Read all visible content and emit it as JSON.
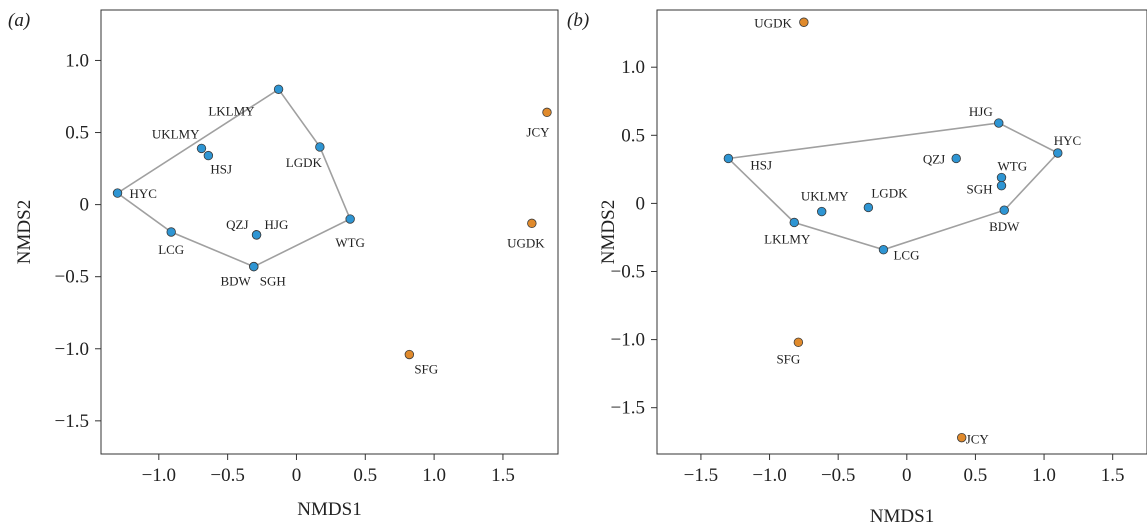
{
  "colors": {
    "blue": "#2e95d3",
    "orange": "#e08a2c",
    "hull": "#a0a0a0"
  },
  "chart_data": [
    {
      "type": "scatter",
      "panel_label": "(a)",
      "xlabel": "NMDS1",
      "ylabel": "NMDS2",
      "xlim": [
        -1.42,
        1.9
      ],
      "ylim": [
        -1.73,
        1.35
      ],
      "xticks": [
        {
          "v": -1.0,
          "label": "−1.0"
        },
        {
          "v": -0.5,
          "label": "−0.5"
        },
        {
          "v": 0,
          "label": "0"
        },
        {
          "v": 0.5,
          "label": "0.5"
        },
        {
          "v": 1.0,
          "label": "1.0"
        },
        {
          "v": 1.5,
          "label": "1.5"
        }
      ],
      "yticks": [
        {
          "v": 1.0,
          "label": "1.0"
        },
        {
          "v": 0.5,
          "label": "0.5"
        },
        {
          "v": 0,
          "label": "0"
        },
        {
          "v": -0.5,
          "label": "−0.5"
        },
        {
          "v": -1.0,
          "label": "−1.0"
        },
        {
          "v": -1.5,
          "label": "−1.5"
        }
      ],
      "hull": [
        "LKLMY",
        "LGDK",
        "WTG",
        "SGH",
        "LCG",
        "HYC"
      ],
      "points": [
        {
          "name": "HYC",
          "x": -1.3,
          "y": 0.08,
          "group": "blue",
          "lx": 12,
          "ly": 5,
          "anchor": "start"
        },
        {
          "name": "UKLMY",
          "x": -0.69,
          "y": 0.39,
          "group": "blue",
          "lx": -2,
          "ly": -10,
          "anchor": "end"
        },
        {
          "name": "HSJ",
          "x": -0.64,
          "y": 0.34,
          "group": "blue",
          "lx": 2,
          "ly": 18,
          "anchor": "start"
        },
        {
          "name": "LKLMY",
          "x": -0.13,
          "y": 0.8,
          "group": "blue",
          "lx": -24,
          "ly": 26,
          "anchor": "end"
        },
        {
          "name": "LGDK",
          "x": 0.17,
          "y": 0.4,
          "group": "blue",
          "lx": 2,
          "ly": 20,
          "anchor": "end"
        },
        {
          "name": "WTG",
          "x": 0.39,
          "y": -0.1,
          "group": "blue",
          "lx": 0,
          "ly": 28,
          "anchor": "middle"
        },
        {
          "name": "QZJ",
          "x": -0.29,
          "y": -0.21,
          "group": "blue",
          "lx": -8,
          "ly": -6,
          "anchor": "end"
        },
        {
          "name": "HJG",
          "x": -0.29,
          "y": -0.21,
          "group": "blue",
          "lx": 8,
          "ly": -6,
          "anchor": "start"
        },
        {
          "name": "LCG",
          "x": -0.91,
          "y": -0.19,
          "group": "blue",
          "lx": 0,
          "ly": 22,
          "anchor": "middle"
        },
        {
          "name": "BDW",
          "x": -0.31,
          "y": -0.43,
          "group": "blue",
          "lx": -3,
          "ly": 19,
          "anchor": "end"
        },
        {
          "name": "SGH",
          "x": -0.31,
          "y": -0.43,
          "group": "blue",
          "lx": 6,
          "ly": 19,
          "anchor": "start"
        },
        {
          "name": "JCY",
          "x": 1.82,
          "y": 0.64,
          "group": "orange",
          "lx": -9,
          "ly": 24,
          "anchor": "middle"
        },
        {
          "name": "UGDK",
          "x": 1.71,
          "y": -0.13,
          "group": "orange",
          "lx": -6,
          "ly": 24,
          "anchor": "middle"
        },
        {
          "name": "SFG",
          "x": 0.82,
          "y": -1.04,
          "group": "orange",
          "lx": 5,
          "ly": 19,
          "anchor": "start"
        }
      ]
    },
    {
      "type": "scatter",
      "panel_label": "(b)",
      "xlabel": "NMDS1",
      "ylabel": "NMDS2",
      "xlim": [
        -1.82,
        1.75
      ],
      "ylim": [
        -1.84,
        1.42
      ],
      "xticks": [
        {
          "v": -1.5,
          "label": "−1.5"
        },
        {
          "v": -1.0,
          "label": "−1.0"
        },
        {
          "v": -0.5,
          "label": "−0.5"
        },
        {
          "v": 0,
          "label": "0"
        },
        {
          "v": 0.5,
          "label": "0.5"
        },
        {
          "v": 1.0,
          "label": "1.0"
        },
        {
          "v": 1.5,
          "label": "1.5"
        }
      ],
      "yticks": [
        {
          "v": 1.0,
          "label": "1.0"
        },
        {
          "v": 0.5,
          "label": "0.5"
        },
        {
          "v": 0,
          "label": "0"
        },
        {
          "v": -0.5,
          "label": "−0.5"
        },
        {
          "v": -1.0,
          "label": "−1.0"
        },
        {
          "v": -1.5,
          "label": "−1.5"
        }
      ],
      "hull": [
        "HSJ",
        "HJG",
        "HYC",
        "BDW",
        "LCG",
        "LKLMY"
      ],
      "points": [
        {
          "name": "UGDK",
          "x": -0.75,
          "y": 1.33,
          "group": "orange",
          "lx": -12,
          "ly": 5,
          "anchor": "end"
        },
        {
          "name": "HJG",
          "x": 0.67,
          "y": 0.59,
          "group": "blue",
          "lx": -6,
          "ly": -7,
          "anchor": "end"
        },
        {
          "name": "HYC",
          "x": 1.1,
          "y": 0.37,
          "group": "blue",
          "lx": -4,
          "ly": -8,
          "anchor": "start"
        },
        {
          "name": "HSJ",
          "x": -1.3,
          "y": 0.33,
          "group": "blue",
          "lx": 22,
          "ly": 11,
          "anchor": "start"
        },
        {
          "name": "QZJ",
          "x": 0.36,
          "y": 0.33,
          "group": "blue",
          "lx": -11,
          "ly": 5,
          "anchor": "end"
        },
        {
          "name": "WTG",
          "x": 0.69,
          "y": 0.19,
          "group": "blue",
          "lx": -4,
          "ly": -7,
          "anchor": "start"
        },
        {
          "name": "SGH",
          "x": 0.69,
          "y": 0.13,
          "group": "blue",
          "lx": -9,
          "ly": 8,
          "anchor": "end"
        },
        {
          "name": "UKLMY",
          "x": -0.62,
          "y": -0.06,
          "group": "blue",
          "lx": 3,
          "ly": -11,
          "anchor": "middle"
        },
        {
          "name": "LGDK",
          "x": -0.28,
          "y": -0.03,
          "group": "blue",
          "lx": 3,
          "ly": -10,
          "anchor": "start"
        },
        {
          "name": "BDW",
          "x": 0.71,
          "y": -0.05,
          "group": "blue",
          "lx": 0,
          "ly": 21,
          "anchor": "middle"
        },
        {
          "name": "LKLMY",
          "x": -0.82,
          "y": -0.14,
          "group": "blue",
          "lx": -7,
          "ly": 21,
          "anchor": "middle"
        },
        {
          "name": "LCG",
          "x": -0.17,
          "y": -0.34,
          "group": "blue",
          "lx": 10,
          "ly": 10,
          "anchor": "start"
        },
        {
          "name": "SFG",
          "x": -0.79,
          "y": -1.02,
          "group": "orange",
          "lx": -10,
          "ly": 21,
          "anchor": "middle"
        },
        {
          "name": "JCY",
          "x": 0.4,
          "y": -1.72,
          "group": "orange",
          "lx": 4,
          "ly": 6,
          "anchor": "start"
        }
      ]
    }
  ]
}
